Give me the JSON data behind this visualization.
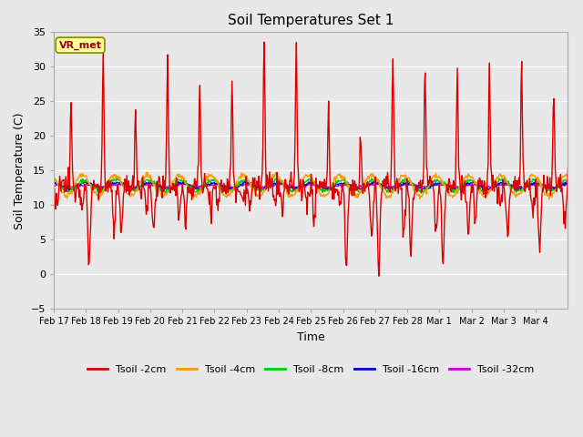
{
  "title": "Soil Temperatures Set 1",
  "xlabel": "Time",
  "ylabel": "Soil Temperature (C)",
  "ylim": [
    -5,
    35
  ],
  "fig_bg_color": "#e8e8e8",
  "plot_bg_color": "#e8e8e8",
  "annotation_label": "VR_met",
  "annotation_bg": "#ffff99",
  "annotation_border": "#888800",
  "series_colors": {
    "Tsoil -2cm": "#dd0000",
    "Tsoil -4cm": "#ff9900",
    "Tsoil -8cm": "#00cc00",
    "Tsoil -16cm": "#0000cc",
    "Tsoil -32cm": "#cc00cc"
  },
  "series_lw": {
    "Tsoil -2cm": 1.0,
    "Tsoil -4cm": 1.0,
    "Tsoil -8cm": 1.0,
    "Tsoil -16cm": 1.0,
    "Tsoil -32cm": 1.0
  },
  "xtick_labels": [
    "Feb 17",
    "Feb 18",
    "Feb 19",
    "Feb 20",
    "Feb 21",
    "Feb 22",
    "Feb 23",
    "Feb 24",
    "Feb 25",
    "Feb 26",
    "Feb 27",
    "Feb 28",
    "Mar 1",
    "Mar 2",
    "Mar 3",
    "Mar 4"
  ],
  "ytick_values": [
    -5,
    0,
    5,
    10,
    15,
    20,
    25,
    30,
    35
  ],
  "num_points_per_day": 48,
  "num_days": 16,
  "base_temp": 12.8
}
